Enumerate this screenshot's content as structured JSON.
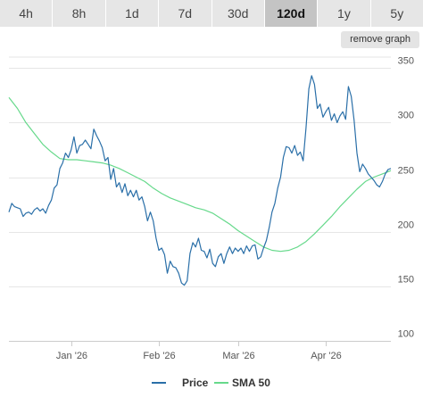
{
  "tabs": [
    {
      "label": "4h",
      "active": false
    },
    {
      "label": "8h",
      "active": false
    },
    {
      "label": "1d",
      "active": false
    },
    {
      "label": "7d",
      "active": false
    },
    {
      "label": "30d",
      "active": false
    },
    {
      "label": "120d",
      "active": true
    },
    {
      "label": "1y",
      "active": false
    },
    {
      "label": "5y",
      "active": false
    }
  ],
  "remove_graph_label": "remove graph",
  "chart_data": {
    "type": "line",
    "title": "",
    "xlabel": "",
    "ylabel": "",
    "x_range": [
      "2025-12-10",
      "2026-04-24"
    ],
    "ylim": [
      100,
      360
    ],
    "y_ticks": [
      100,
      150,
      200,
      250,
      300,
      350
    ],
    "x_ticks": [
      {
        "label": "Jan '26",
        "date": "2026-01-01"
      },
      {
        "label": "Feb '26",
        "date": "2026-02-01"
      },
      {
        "label": "Mar '26",
        "date": "2026-03-01"
      },
      {
        "label": "Apr '26",
        "date": "2026-04-01"
      }
    ],
    "grid": true,
    "legend_position": "bottom",
    "series": [
      {
        "name": "Price",
        "color": "#2a6fa8",
        "points": [
          [
            "2025-12-10",
            218
          ],
          [
            "2025-12-11",
            226
          ],
          [
            "2025-12-12",
            223
          ],
          [
            "2025-12-13",
            222
          ],
          [
            "2025-12-14",
            221
          ],
          [
            "2025-12-15",
            214
          ],
          [
            "2025-12-16",
            217
          ],
          [
            "2025-12-17",
            218
          ],
          [
            "2025-12-18",
            216
          ],
          [
            "2025-12-19",
            220
          ],
          [
            "2025-12-20",
            222
          ],
          [
            "2025-12-21",
            219
          ],
          [
            "2025-12-22",
            221
          ],
          [
            "2025-12-23",
            217
          ],
          [
            "2025-12-24",
            224
          ],
          [
            "2025-12-25",
            229
          ],
          [
            "2025-12-26",
            240
          ],
          [
            "2025-12-27",
            243
          ],
          [
            "2025-12-28",
            258
          ],
          [
            "2025-12-29",
            263
          ],
          [
            "2025-12-30",
            272
          ],
          [
            "2025-12-31",
            268
          ],
          [
            "2026-01-01",
            275
          ],
          [
            "2026-01-02",
            287
          ],
          [
            "2026-01-03",
            272
          ],
          [
            "2026-01-04",
            279
          ],
          [
            "2026-01-05",
            280
          ],
          [
            "2026-01-06",
            284
          ],
          [
            "2026-01-07",
            280
          ],
          [
            "2026-01-08",
            276
          ],
          [
            "2026-01-09",
            294
          ],
          [
            "2026-01-10",
            288
          ],
          [
            "2026-01-11",
            283
          ],
          [
            "2026-01-12",
            277
          ],
          [
            "2026-01-13",
            265
          ],
          [
            "2026-01-14",
            268
          ],
          [
            "2026-01-15",
            248
          ],
          [
            "2026-01-16",
            258
          ],
          [
            "2026-01-17",
            241
          ],
          [
            "2026-01-18",
            245
          ],
          [
            "2026-01-19",
            236
          ],
          [
            "2026-01-20",
            244
          ],
          [
            "2026-01-21",
            233
          ],
          [
            "2026-01-22",
            238
          ],
          [
            "2026-01-23",
            232
          ],
          [
            "2026-01-24",
            238
          ],
          [
            "2026-01-25",
            229
          ],
          [
            "2026-01-26",
            232
          ],
          [
            "2026-01-27",
            223
          ],
          [
            "2026-01-28",
            210
          ],
          [
            "2026-01-29",
            218
          ],
          [
            "2026-01-30",
            210
          ],
          [
            "2026-01-31",
            194
          ],
          [
            "2026-02-01",
            183
          ],
          [
            "2026-02-02",
            185
          ],
          [
            "2026-02-03",
            179
          ],
          [
            "2026-02-04",
            162
          ],
          [
            "2026-02-05",
            173
          ],
          [
            "2026-02-06",
            168
          ],
          [
            "2026-02-07",
            167
          ],
          [
            "2026-02-08",
            162
          ],
          [
            "2026-02-09",
            153
          ],
          [
            "2026-02-10",
            151
          ],
          [
            "2026-02-11",
            155
          ],
          [
            "2026-02-12",
            180
          ],
          [
            "2026-02-13",
            190
          ],
          [
            "2026-02-14",
            186
          ],
          [
            "2026-02-15",
            194
          ],
          [
            "2026-02-16",
            183
          ],
          [
            "2026-02-17",
            182
          ],
          [
            "2026-02-18",
            176
          ],
          [
            "2026-02-19",
            184
          ],
          [
            "2026-02-20",
            171
          ],
          [
            "2026-02-21",
            168
          ],
          [
            "2026-02-22",
            177
          ],
          [
            "2026-02-23",
            180
          ],
          [
            "2026-02-24",
            171
          ],
          [
            "2026-02-25",
            180
          ],
          [
            "2026-02-26",
            186
          ],
          [
            "2026-02-27",
            180
          ],
          [
            "2026-02-28",
            185
          ],
          [
            "2026-03-01",
            182
          ],
          [
            "2026-03-02",
            185
          ],
          [
            "2026-03-03",
            180
          ],
          [
            "2026-03-04",
            187
          ],
          [
            "2026-03-05",
            182
          ],
          [
            "2026-03-06",
            187
          ],
          [
            "2026-03-07",
            188
          ],
          [
            "2026-03-08",
            175
          ],
          [
            "2026-03-09",
            177
          ],
          [
            "2026-03-10",
            185
          ],
          [
            "2026-03-11",
            192
          ],
          [
            "2026-03-12",
            204
          ],
          [
            "2026-03-13",
            218
          ],
          [
            "2026-03-14",
            226
          ],
          [
            "2026-03-15",
            240
          ],
          [
            "2026-03-16",
            250
          ],
          [
            "2026-03-17",
            268
          ],
          [
            "2026-03-18",
            278
          ],
          [
            "2026-03-19",
            277
          ],
          [
            "2026-03-20",
            272
          ],
          [
            "2026-03-21",
            279
          ],
          [
            "2026-03-22",
            270
          ],
          [
            "2026-03-23",
            273
          ],
          [
            "2026-03-24",
            265
          ],
          [
            "2026-03-25",
            295
          ],
          [
            "2026-03-26",
            331
          ],
          [
            "2026-03-27",
            343
          ],
          [
            "2026-03-28",
            335
          ],
          [
            "2026-03-29",
            313
          ],
          [
            "2026-03-30",
            317
          ],
          [
            "2026-03-31",
            305
          ],
          [
            "2026-04-01",
            310
          ],
          [
            "2026-04-02",
            314
          ],
          [
            "2026-04-03",
            302
          ],
          [
            "2026-04-04",
            308
          ],
          [
            "2026-04-05",
            300
          ],
          [
            "2026-04-06",
            306
          ],
          [
            "2026-04-07",
            310
          ],
          [
            "2026-04-08",
            303
          ],
          [
            "2026-04-09",
            333
          ],
          [
            "2026-04-10",
            324
          ],
          [
            "2026-04-11",
            302
          ],
          [
            "2026-04-12",
            272
          ],
          [
            "2026-04-13",
            255
          ],
          [
            "2026-04-14",
            262
          ],
          [
            "2026-04-15",
            258
          ],
          [
            "2026-04-16",
            253
          ],
          [
            "2026-04-17",
            250
          ],
          [
            "2026-04-18",
            247
          ],
          [
            "2026-04-19",
            243
          ],
          [
            "2026-04-20",
            241
          ],
          [
            "2026-04-21",
            246
          ],
          [
            "2026-04-22",
            253
          ],
          [
            "2026-04-23",
            257
          ],
          [
            "2026-04-24",
            258
          ]
        ]
      },
      {
        "name": "SMA 50",
        "color": "#66d98b",
        "points": [
          [
            "2025-12-10",
            323
          ],
          [
            "2025-12-13",
            313
          ],
          [
            "2025-12-16",
            300
          ],
          [
            "2025-12-19",
            290
          ],
          [
            "2025-12-22",
            280
          ],
          [
            "2025-12-25",
            273
          ],
          [
            "2025-12-28",
            267
          ],
          [
            "2025-12-31",
            266
          ],
          [
            "2026-01-03",
            266
          ],
          [
            "2026-01-06",
            265
          ],
          [
            "2026-01-09",
            264
          ],
          [
            "2026-01-12",
            263
          ],
          [
            "2026-01-15",
            261
          ],
          [
            "2026-01-18",
            258
          ],
          [
            "2026-01-21",
            254
          ],
          [
            "2026-01-24",
            250
          ],
          [
            "2026-01-27",
            246
          ],
          [
            "2026-01-30",
            240
          ],
          [
            "2026-02-02",
            235
          ],
          [
            "2026-02-05",
            231
          ],
          [
            "2026-02-08",
            228
          ],
          [
            "2026-02-11",
            225
          ],
          [
            "2026-02-14",
            222
          ],
          [
            "2026-02-17",
            220
          ],
          [
            "2026-02-20",
            217
          ],
          [
            "2026-02-23",
            212
          ],
          [
            "2026-02-26",
            207
          ],
          [
            "2026-03-01",
            201
          ],
          [
            "2026-03-04",
            196
          ],
          [
            "2026-03-07",
            191
          ],
          [
            "2026-03-10",
            186
          ],
          [
            "2026-03-13",
            183
          ],
          [
            "2026-03-16",
            182
          ],
          [
            "2026-03-19",
            183
          ],
          [
            "2026-03-22",
            186
          ],
          [
            "2026-03-25",
            191
          ],
          [
            "2026-03-28",
            198
          ],
          [
            "2026-03-31",
            206
          ],
          [
            "2026-04-03",
            214
          ],
          [
            "2026-04-06",
            223
          ],
          [
            "2026-04-09",
            231
          ],
          [
            "2026-04-12",
            239
          ],
          [
            "2026-04-15",
            246
          ],
          [
            "2026-04-18",
            250
          ],
          [
            "2026-04-21",
            253
          ],
          [
            "2026-04-24",
            256
          ]
        ]
      }
    ]
  }
}
